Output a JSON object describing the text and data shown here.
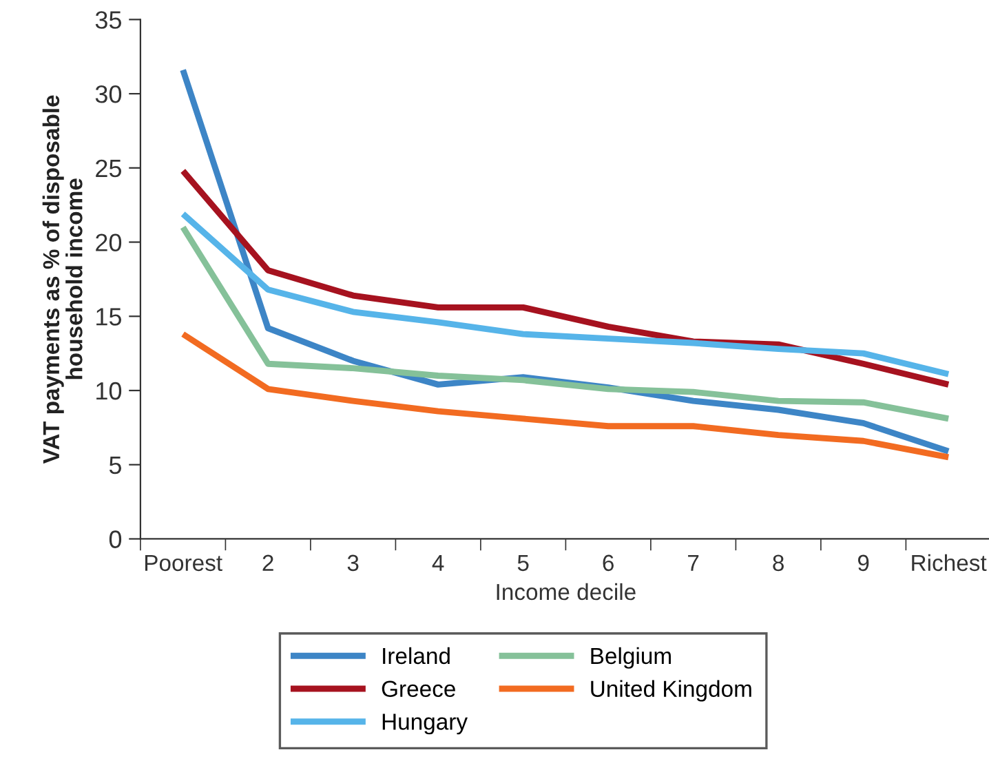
{
  "chart_data": {
    "type": "line",
    "xlabel": "Income decile",
    "ylabel": "VAT payments as % of disposable\nhousehold income",
    "categories": [
      "Poorest",
      "2",
      "3",
      "4",
      "5",
      "6",
      "7",
      "8",
      "9",
      "Richest"
    ],
    "ylim": [
      0,
      35
    ],
    "yticks": [
      0,
      5,
      10,
      15,
      20,
      25,
      30,
      35
    ],
    "grid": false,
    "legend": "bottom",
    "marker": "none",
    "line_style": "solid",
    "series": [
      {
        "name": "Ireland",
        "color": "#3d85c6",
        "values": [
          31.6,
          14.2,
          12.0,
          10.4,
          10.9,
          10.2,
          9.3,
          8.7,
          7.8,
          5.9
        ]
      },
      {
        "name": "Greece",
        "color": "#a6121f",
        "values": [
          24.8,
          18.1,
          16.4,
          15.6,
          15.6,
          14.3,
          13.3,
          13.1,
          11.8,
          10.4
        ]
      },
      {
        "name": "Hungary",
        "color": "#56b4e9",
        "values": [
          21.9,
          16.8,
          15.3,
          14.6,
          13.8,
          13.5,
          13.2,
          12.8,
          12.5,
          11.1
        ]
      },
      {
        "name": "Belgium",
        "color": "#85c199",
        "values": [
          21.0,
          11.8,
          11.5,
          11.0,
          10.7,
          10.1,
          9.9,
          9.3,
          9.2,
          8.1
        ]
      },
      {
        "name": "United Kingdom",
        "color": "#f26b21",
        "values": [
          13.8,
          10.1,
          9.3,
          8.6,
          8.1,
          7.6,
          7.6,
          7.0,
          6.6,
          5.5
        ]
      }
    ]
  }
}
